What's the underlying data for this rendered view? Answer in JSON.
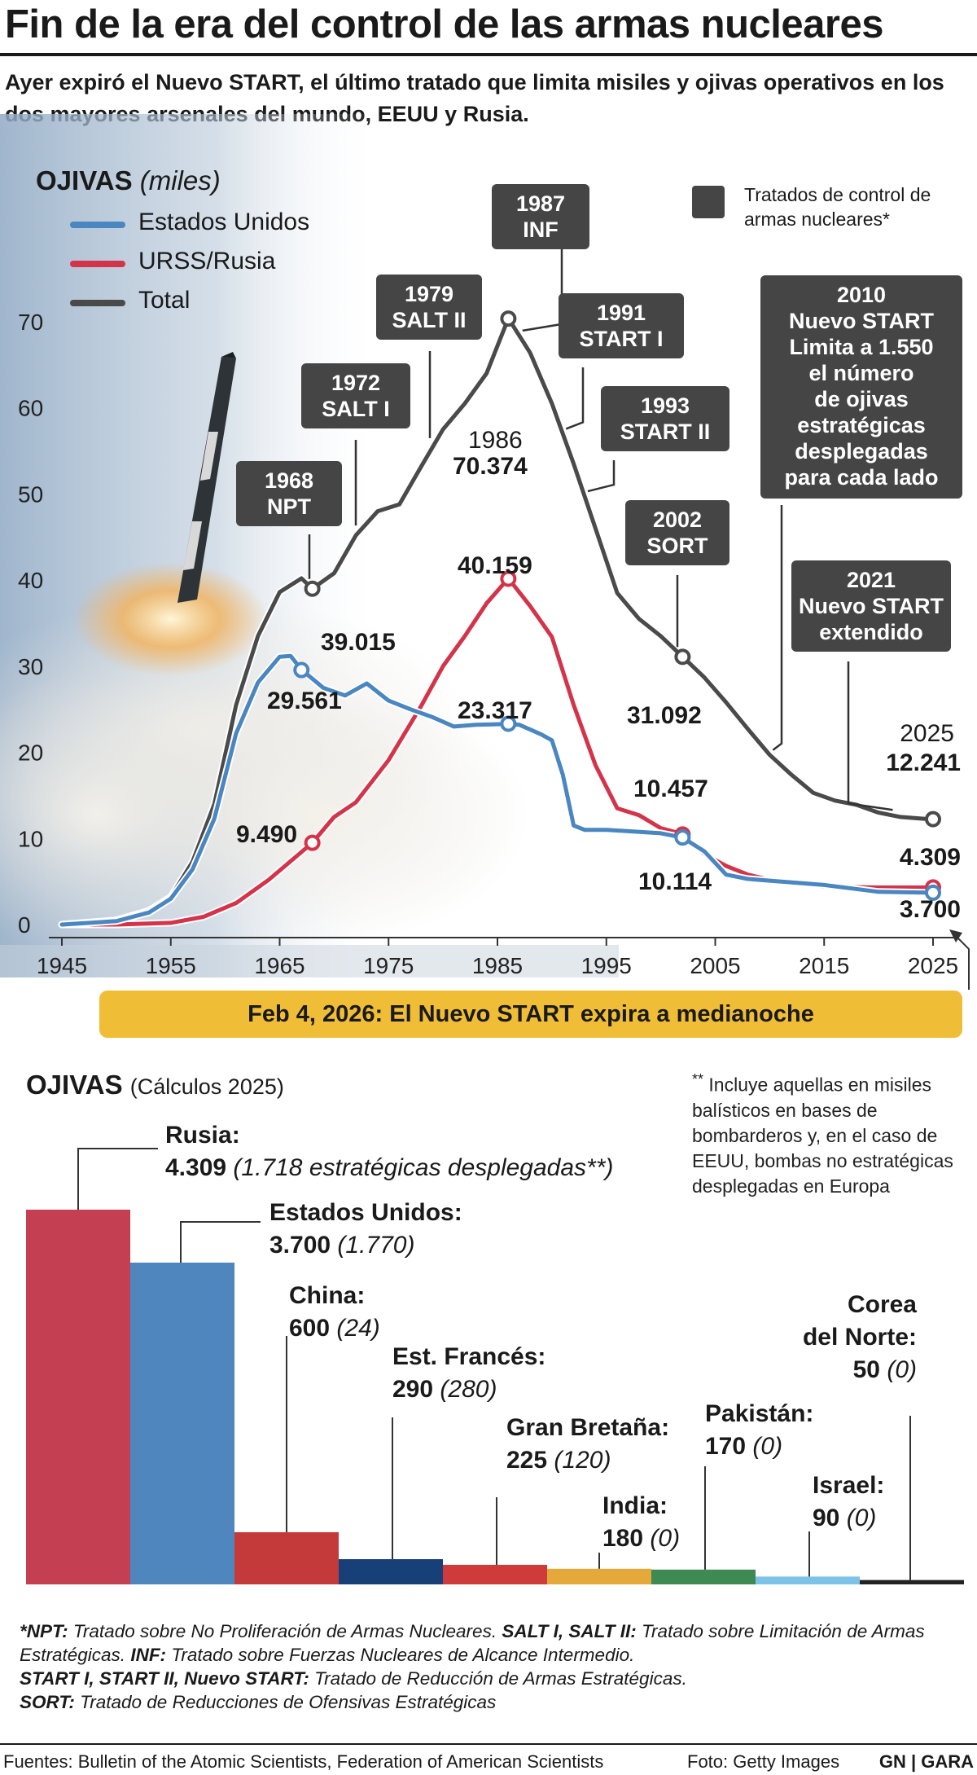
{
  "header": {
    "title": "Fin de la era del control de las armas nucleares",
    "subtitle": "Ayer expiró el Nuevo START, el último tratado que limita misiles y ojivas operativos en los dos mayores arsenales del mundo, EEUU y Rusia."
  },
  "line_chart": {
    "heading": "OJIVAS",
    "heading_unit": "(miles)",
    "legend": {
      "us": "Estados Unidos",
      "russia": "URSS/Rusia",
      "total": "Total",
      "treaties": "Tratados de control de armas nucleares*"
    },
    "treaties": {
      "npt": {
        "year": "1968",
        "name": "NPT"
      },
      "salt1": {
        "year": "1972",
        "name": "SALT I"
      },
      "salt2": {
        "year": "1979",
        "name": "SALT II"
      },
      "inf": {
        "year": "1987",
        "name": "INF"
      },
      "start1": {
        "year": "1991",
        "name": "START I"
      },
      "start2": {
        "year": "1993",
        "name": "START II"
      },
      "sort": {
        "year": "2002",
        "name": "SORT"
      },
      "newstart": {
        "year": "2010",
        "line1": "Nuevo START",
        "line2": "Limita a 1.550",
        "line3": "el  número",
        "line4": "de ojivas",
        "line5": "estratégicas",
        "line6": "desplegadas",
        "line7": "para cada lado"
      },
      "extended": {
        "year": "2021",
        "line1": "Nuevo START",
        "line2": "extendido"
      }
    },
    "point_labels": {
      "us_1967": "29.561",
      "total_1968": "39.015",
      "russia_1968": "9.490",
      "total_1986_year": "1986",
      "total_1986": "70.374",
      "russia_1986": "40.159",
      "us_1986": "23.317",
      "total_2002": "31.092",
      "russia_2002": "10.457",
      "us_2002": "10.114",
      "year_2025": "2025",
      "total_2025": "12.241",
      "russia_2025": "4.309",
      "us_2025": "3.700"
    },
    "expiry_banner": "Feb 4, 2026: El Nuevo START expira a medianoche"
  },
  "bar_chart": {
    "heading": "OJIVAS",
    "heading_sub": "(Cálculos 2025)",
    "note_mark": "**",
    "note": "Incluye aquellas en misiles balísticos en bases de bombarderos y, en el caso de EEUU, bombas no estratégicas desplegadas en Europa",
    "countries": [
      {
        "name": "Rusia:",
        "value": "4.309",
        "strategic": "(1.718 estratégicas desplegadas**)"
      },
      {
        "name": "Estados Unidos:",
        "value": "3.700",
        "strategic": "(1.770)"
      },
      {
        "name": "China:",
        "value": "600",
        "strategic": "(24)"
      },
      {
        "name": "Est. Francés:",
        "value": "290",
        "strategic": "(280)"
      },
      {
        "name": "Gran Bretaña:",
        "value": "225",
        "strategic": "(120)"
      },
      {
        "name": "India:",
        "value": "180",
        "strategic": "(0)"
      },
      {
        "name": "Pakistán:",
        "value": "170",
        "strategic": "(0)"
      },
      {
        "name": "Israel:",
        "value": "90",
        "strategic": "(0)"
      },
      {
        "name1": "Corea",
        "name2": "del Norte:",
        "value": "50",
        "strategic": "(0)"
      }
    ]
  },
  "footnotes": {
    "l1_b": "*NPT:",
    "l1_t": " Tratado sobre No Proliferación de Armas Nucleares. ",
    "l1_b2": "SALT I, SALT II:",
    "l1_t2": " Tratado sobre Limitación de Armas Estratégicas. ",
    "l2_b": "INF:",
    "l2_t": " Tratado sobre Fuerzas Nucleares de Alcance Intermedio.",
    "l3_b": "START I, START II, Nuevo START:",
    "l3_t": " Tratado de Reducción de Armas Estratégicas.",
    "l4_b": "SORT:",
    "l4_t": " Tratado de Reducciones de Ofensivas Estratégicas"
  },
  "footer": {
    "sources": "Fuentes: Bulletin of the Atomic Scientists, Federation of American Scientists",
    "photo": "Foto: Getty Images",
    "brand": "GN | GARA"
  },
  "colors": {
    "us": "#4a86c0",
    "russia": "#d3344a",
    "total": "#4a4a4a",
    "callout": "#454545",
    "banner": "#f0bd37"
  },
  "chart_data": [
    {
      "type": "line",
      "title": "OJIVAS (miles)",
      "xlim": [
        1945,
        2025
      ],
      "ylim": [
        0,
        70
      ],
      "x_ticks": [
        1945,
        1955,
        1965,
        1975,
        1985,
        1995,
        2005,
        2015,
        2025
      ],
      "y_ticks": [
        0,
        10,
        20,
        30,
        40,
        50,
        60,
        70
      ],
      "grid": false,
      "legend": "top-left",
      "series": [
        {
          "name": "Estados Unidos",
          "color": "#4a86c0",
          "points": [
            [
              1945,
              0
            ],
            [
              1950,
              0.4
            ],
            [
              1953,
              1.4
            ],
            [
              1955,
              3
            ],
            [
              1957,
              6.4
            ],
            [
              1959,
              12.3
            ],
            [
              1961,
              22.2
            ],
            [
              1963,
              28.1
            ],
            [
              1965,
              31.1
            ],
            [
              1966,
              31.2
            ],
            [
              1967,
              29.6
            ],
            [
              1969,
              27.5
            ],
            [
              1971,
              26.6
            ],
            [
              1973,
              28
            ],
            [
              1975,
              26
            ],
            [
              1977,
              25
            ],
            [
              1979,
              24.1
            ],
            [
              1981,
              23.0
            ],
            [
              1983,
              23.2
            ],
            [
              1986,
              23.3
            ],
            [
              1987,
              23.2
            ],
            [
              1989,
              22.1
            ],
            [
              1990,
              21.4
            ],
            [
              1991,
              17.4
            ],
            [
              1992,
              11.5
            ],
            [
              1993,
              11.0
            ],
            [
              1995,
              11.0
            ],
            [
              2000,
              10.6
            ],
            [
              2002,
              10.1
            ],
            [
              2004,
              8.5
            ],
            [
              2006,
              5.8
            ],
            [
              2008,
              5.3
            ],
            [
              2010,
              5.1
            ],
            [
              2015,
              4.6
            ],
            [
              2020,
              3.8
            ],
            [
              2025,
              3.7
            ]
          ]
        },
        {
          "name": "URSS/Rusia",
          "color": "#d3344a",
          "points": [
            [
              1945,
              0
            ],
            [
              1950,
              0
            ],
            [
              1955,
              0.2
            ],
            [
              1958,
              0.9
            ],
            [
              1961,
              2.5
            ],
            [
              1964,
              5.2
            ],
            [
              1968,
              9.5
            ],
            [
              1970,
              12.5
            ],
            [
              1972,
              14.2
            ],
            [
              1975,
              19.1
            ],
            [
              1978,
              25.4
            ],
            [
              1980,
              30.0
            ],
            [
              1982,
              33.5
            ],
            [
              1984,
              37.3
            ],
            [
              1986,
              40.2
            ],
            [
              1988,
              37
            ],
            [
              1990,
              33.4
            ],
            [
              1992,
              25.5
            ],
            [
              1994,
              18.5
            ],
            [
              1996,
              13.5
            ],
            [
              1998,
              12.7
            ],
            [
              2000,
              11.2
            ],
            [
              2002,
              10.5
            ],
            [
              2004,
              8.2
            ],
            [
              2006,
              6.8
            ],
            [
              2008,
              5.8
            ],
            [
              2010,
              5.2
            ],
            [
              2015,
              4.4
            ],
            [
              2020,
              4.3
            ],
            [
              2025,
              4.3
            ]
          ]
        },
        {
          "name": "Total",
          "color": "#4a4a4a",
          "points": [
            [
              1945,
              0
            ],
            [
              1950,
              0.5
            ],
            [
              1953,
              1.6
            ],
            [
              1955,
              3.2
            ],
            [
              1957,
              7.3
            ],
            [
              1959,
              14
            ],
            [
              1961,
              25.5
            ],
            [
              1963,
              33.5
            ],
            [
              1965,
              38.6
            ],
            [
              1967,
              40.2
            ],
            [
              1968,
              39.0
            ],
            [
              1970,
              40.8
            ],
            [
              1972,
              45.2
            ],
            [
              1974,
              48.0
            ],
            [
              1976,
              48.8
            ],
            [
              1978,
              53.2
            ],
            [
              1980,
              57.5
            ],
            [
              1982,
              60.5
            ],
            [
              1984,
              64.0
            ],
            [
              1986,
              70.4
            ],
            [
              1988,
              66.4
            ],
            [
              1990,
              60.5
            ],
            [
              1992,
              53.5
            ],
            [
              1994,
              46.0
            ],
            [
              1996,
              38.5
            ],
            [
              1998,
              35.5
            ],
            [
              2000,
              33.5
            ],
            [
              2002,
              31.1
            ],
            [
              2004,
              28.7
            ],
            [
              2006,
              25.8
            ],
            [
              2008,
              22.7
            ],
            [
              2010,
              19.7
            ],
            [
              2012,
              17.4
            ],
            [
              2014,
              15.3
            ],
            [
              2016,
              14.4
            ],
            [
              2018,
              13.9
            ],
            [
              2020,
              13.0
            ],
            [
              2022,
              12.5
            ],
            [
              2025,
              12.2
            ]
          ]
        }
      ]
    },
    {
      "type": "bar",
      "title": "OJIVAS (Cálculos 2025)",
      "categories": [
        "Rusia",
        "Estados Unidos",
        "China",
        "Est. Francés",
        "Gran Bretaña",
        "India",
        "Pakistán",
        "Israel",
        "Corea del Norte"
      ],
      "values": [
        4309,
        3700,
        600,
        290,
        225,
        180,
        170,
        90,
        50
      ],
      "colors": [
        "#c43f52",
        "#4f86bd",
        "#c43a3a",
        "#173f78",
        "#cf3a3a",
        "#e5a93b",
        "#3d8a52",
        "#7cc3e7",
        "#222222"
      ],
      "strategic_deployed": [
        1718,
        1770,
        24,
        280,
        120,
        0,
        0,
        0,
        0
      ]
    }
  ]
}
